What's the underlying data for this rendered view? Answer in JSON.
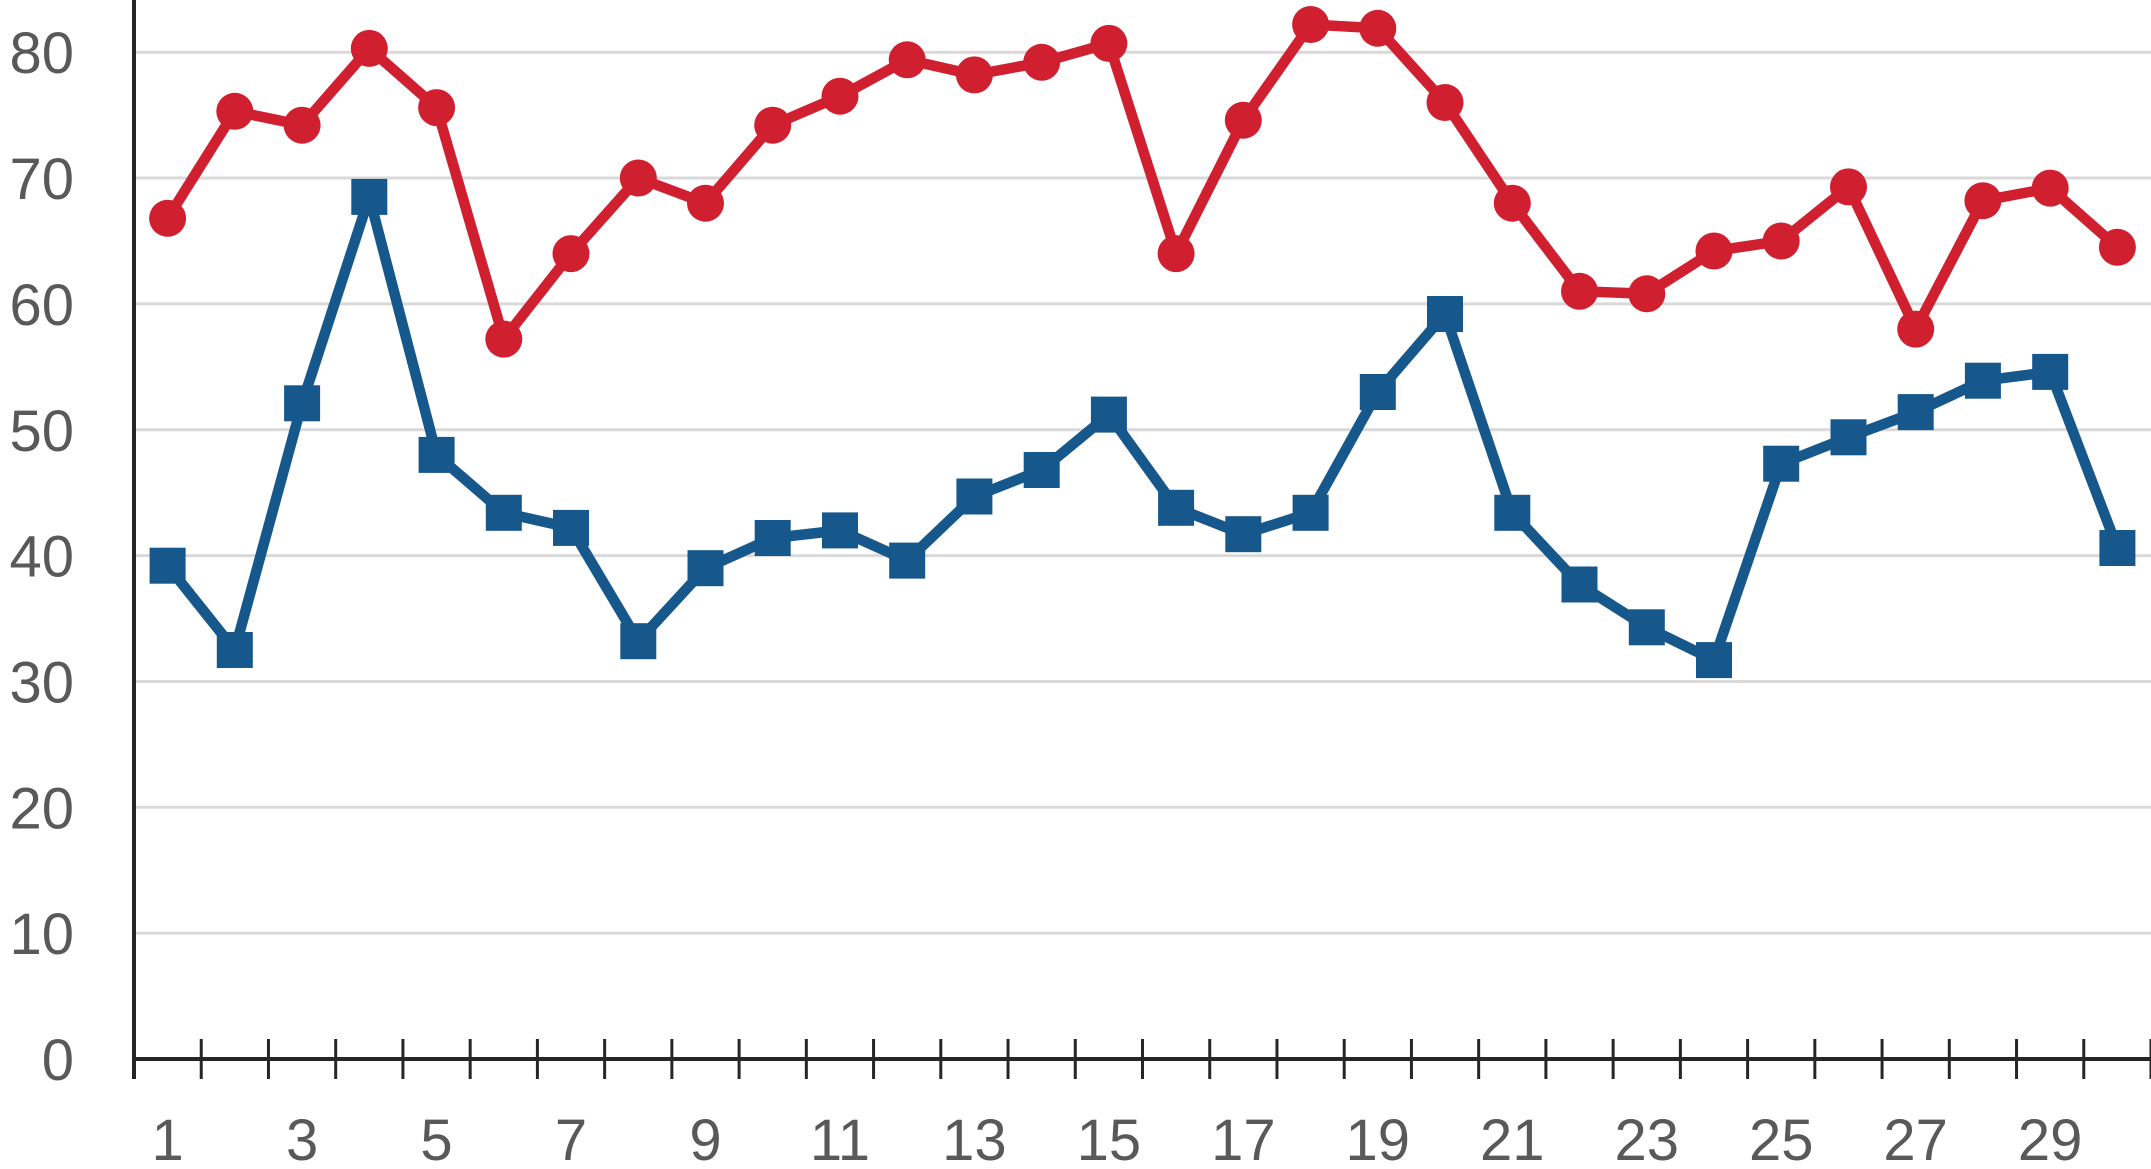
{
  "chart_data": {
    "type": "line",
    "title": "",
    "xlabel": "",
    "ylabel": "",
    "x": [
      1,
      2,
      3,
      4,
      5,
      6,
      7,
      8,
      9,
      10,
      11,
      12,
      13,
      14,
      15,
      16,
      17,
      18,
      19,
      20,
      21,
      22,
      23,
      24,
      25,
      26,
      27,
      28,
      29,
      30
    ],
    "x_tick_labels": [
      "1",
      "3",
      "5",
      "7",
      "9",
      "11",
      "13",
      "15",
      "17",
      "19",
      "21",
      "23",
      "25",
      "27",
      "29"
    ],
    "x_label_positions": [
      1,
      3,
      5,
      7,
      9,
      11,
      13,
      15,
      17,
      19,
      21,
      23,
      25,
      27,
      29
    ],
    "y_ticks": [
      0,
      10,
      20,
      30,
      40,
      50,
      60,
      70,
      80
    ],
    "y_tick_labels": [
      "0",
      "10",
      "20",
      "30",
      "40",
      "50",
      "60",
      "70",
      "80"
    ],
    "ylim": [
      0,
      84
    ],
    "grid": "horizontal",
    "legend": "none",
    "series": [
      {
        "id": "blue-square-series",
        "marker": "square",
        "color": "#16578C",
        "values": [
          39.2,
          32.5,
          52.1,
          68.5,
          48.0,
          43.4,
          42.2,
          33.2,
          39.0,
          41.4,
          42.0,
          39.6,
          44.7,
          46.8,
          51.2,
          43.8,
          41.7,
          43.4,
          53.0,
          59.2,
          43.4,
          37.7,
          34.3,
          31.7,
          47.3,
          49.4,
          51.4,
          53.9,
          54.6,
          40.6
        ]
      },
      {
        "id": "red-circle-series",
        "marker": "circle",
        "color": "#D02030",
        "values": [
          66.8,
          75.3,
          74.2,
          80.3,
          75.6,
          57.2,
          64.0,
          70.0,
          68.0,
          74.2,
          76.5,
          79.4,
          78.2,
          79.2,
          80.7,
          64.0,
          74.6,
          82.2,
          81.9,
          76.0,
          68.0,
          61.0,
          60.8,
          64.2,
          65.0,
          69.3,
          58.0,
          68.2,
          69.2,
          64.5
        ]
      }
    ],
    "colors": {
      "grid": "#D9D9D9",
      "axis": "#262626",
      "tick": "#262626",
      "label": "#595959",
      "background": "#FFFFFF"
    }
  }
}
